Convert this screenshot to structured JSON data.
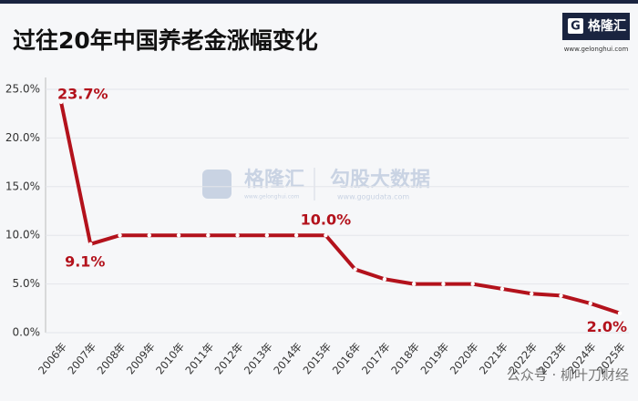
{
  "chart_data": {
    "type": "line",
    "title": "过往20年中国养老金涨幅变化",
    "categories": [
      "2006年",
      "2007年",
      "2008年",
      "2009年",
      "2010年",
      "2011年",
      "2012年",
      "2013年",
      "2014年",
      "2015年",
      "2016年",
      "2017年",
      "2018年",
      "2019年",
      "2020年",
      "2021年",
      "2022年",
      "2023年",
      "2024年",
      "2025年"
    ],
    "series": [
      {
        "name": "养老金涨幅",
        "color": "#b3121c",
        "values": [
          23.7,
          9.1,
          10.0,
          10.0,
          10.0,
          10.0,
          10.0,
          10.0,
          10.0,
          10.0,
          6.5,
          5.5,
          5.0,
          5.0,
          5.0,
          4.5,
          4.0,
          3.8,
          3.0,
          2.0
        ],
        "value_labels": [
          "23.7%",
          "9.1%",
          null,
          null,
          null,
          null,
          null,
          null,
          null,
          "10.0%",
          null,
          null,
          null,
          null,
          null,
          null,
          null,
          null,
          null,
          "2.0%"
        ]
      }
    ],
    "ylim": [
      0,
      25
    ],
    "yticks": [
      {
        "value": 0,
        "label": "0.0%"
      },
      {
        "value": 5,
        "label": "5.0%"
      },
      {
        "value": 10,
        "label": "10.0%"
      },
      {
        "value": 15,
        "label": "15.0%"
      },
      {
        "value": 20,
        "label": "20.0%"
      },
      {
        "value": 25,
        "label": "25.0%"
      }
    ],
    "grid": true
  },
  "logo": {
    "name": "格隆汇",
    "url": "www.gelonghui.com"
  },
  "watermark": {
    "left": "格隆汇",
    "left_url": "www.gelonghui.com",
    "right": "勾股大数据",
    "right_url": "www.gogudata.com"
  },
  "footer": "公众号 · 柳叶刀财经"
}
